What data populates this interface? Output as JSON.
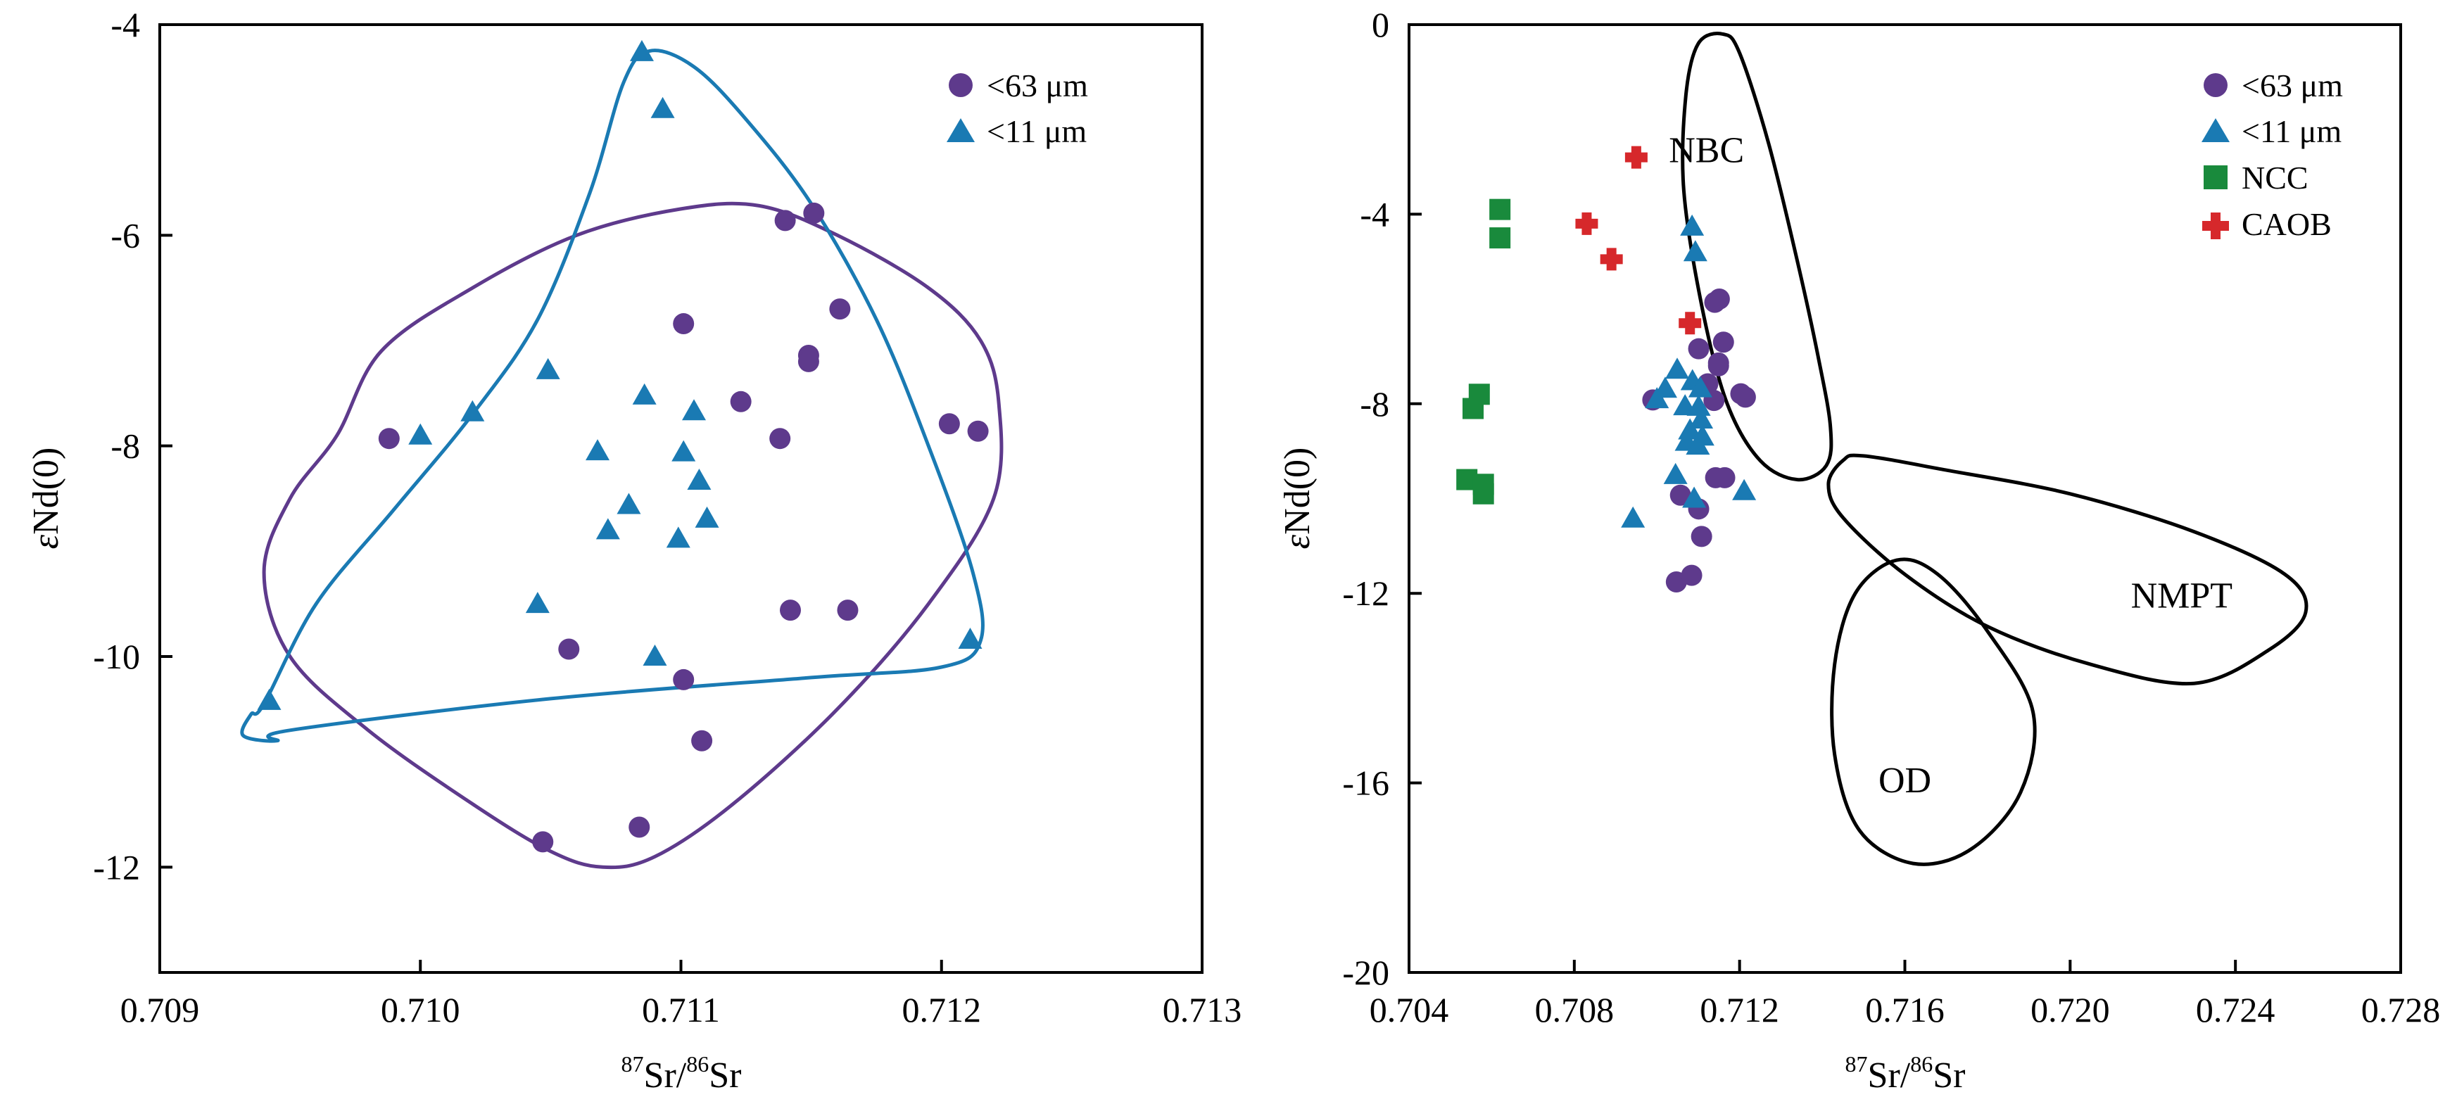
{
  "colors": {
    "purple": "#5e3a8c",
    "blue": "#1a7ab3",
    "green": "#198a3c",
    "red": "#d6282b",
    "black": "#000000"
  },
  "chart_data": [
    {
      "type": "scatter",
      "xlabel": {
        "sup1": "87",
        "mid": "Sr/",
        "sup2": "86",
        "end": "Sr"
      },
      "ylabel": {
        "pre": "ε",
        "main": "Nd(0)"
      },
      "xlim": [
        0.709,
        0.713
      ],
      "ylim": [
        -13,
        -4
      ],
      "xticks": [
        {
          "value": 0.709,
          "label": "0.709"
        },
        {
          "value": 0.71,
          "label": "0.710"
        },
        {
          "value": 0.711,
          "label": "0.711"
        },
        {
          "value": 0.712,
          "label": "0.712"
        },
        {
          "value": 0.713,
          "label": "0.713"
        }
      ],
      "yticks": [
        {
          "value": -4,
          "label": "-4"
        },
        {
          "value": -6,
          "label": "-6"
        },
        {
          "value": -8,
          "label": "-8"
        },
        {
          "value": -10,
          "label": "-10"
        },
        {
          "value": -12,
          "label": "-12"
        }
      ],
      "legend_position": "top-right",
      "series": [
        {
          "name": "<63 μm",
          "marker": "circle",
          "color": "#5e3a8c",
          "points": [
            [
              0.70988,
              -7.93
            ],
            [
              0.71057,
              -9.93
            ],
            [
              0.71047,
              -11.76
            ],
            [
              0.71084,
              -11.62
            ],
            [
              0.71101,
              -10.22
            ],
            [
              0.71108,
              -10.8
            ],
            [
              0.71101,
              -6.84
            ],
            [
              0.71123,
              -7.58
            ],
            [
              0.71138,
              -7.93
            ],
            [
              0.7114,
              -5.86
            ],
            [
              0.71151,
              -5.79
            ],
            [
              0.71149,
              -7.14
            ],
            [
              0.71149,
              -7.2
            ],
            [
              0.71142,
              -9.56
            ],
            [
              0.71161,
              -6.7
            ],
            [
              0.71164,
              -9.56
            ],
            [
              0.71203,
              -7.79
            ],
            [
              0.71214,
              -7.86
            ]
          ]
        },
        {
          "name": "<11 μm",
          "marker": "triangle",
          "color": "#1a7ab3",
          "points": [
            [
              0.70942,
              -10.42
            ],
            [
              0.71,
              -7.9
            ],
            [
              0.7102,
              -7.68
            ],
            [
              0.71049,
              -7.28
            ],
            [
              0.71045,
              -9.5
            ],
            [
              0.71068,
              -8.05
            ],
            [
              0.71072,
              -8.8
            ],
            [
              0.7108,
              -8.56
            ],
            [
              0.71085,
              -4.26
            ],
            [
              0.71086,
              -7.52
            ],
            [
              0.7109,
              -10.0
            ],
            [
              0.71093,
              -4.8
            ],
            [
              0.71099,
              -8.88
            ],
            [
              0.71101,
              -8.06
            ],
            [
              0.71105,
              -7.67
            ],
            [
              0.71107,
              -8.33
            ],
            [
              0.7111,
              -8.69
            ],
            [
              0.71211,
              -9.84
            ]
          ]
        }
      ],
      "envelopes": [
        {
          "series": "<63 μm",
          "color": "#5e3a8c",
          "points": [
            [
              0.70968,
              -7.9
            ],
            [
              0.7095,
              -8.5
            ],
            [
              0.7094,
              -9.2
            ],
            [
              0.7095,
              -10.0
            ],
            [
              0.7098,
              -10.7
            ],
            [
              0.7102,
              -11.4
            ],
            [
              0.7105,
              -11.85
            ],
            [
              0.7107,
              -12.0
            ],
            [
              0.7109,
              -11.9
            ],
            [
              0.7112,
              -11.4
            ],
            [
              0.7116,
              -10.5
            ],
            [
              0.71195,
              -9.5
            ],
            [
              0.7122,
              -8.5
            ],
            [
              0.71222,
              -7.6
            ],
            [
              0.71215,
              -7.0
            ],
            [
              0.71195,
              -6.5
            ],
            [
              0.7116,
              -6.0
            ],
            [
              0.7113,
              -5.72
            ],
            [
              0.711,
              -5.75
            ],
            [
              0.7106,
              -6.0
            ],
            [
              0.7102,
              -6.5
            ],
            [
              0.70985,
              -7.1
            ]
          ]
        },
        {
          "series": "<11 μm",
          "color": "#1a7ab3",
          "points": [
            [
              0.7094,
              -10.45
            ],
            [
              0.7096,
              -9.5
            ],
            [
              0.7099,
              -8.6
            ],
            [
              0.7102,
              -7.7
            ],
            [
              0.71045,
              -6.8
            ],
            [
              0.71065,
              -5.6
            ],
            [
              0.71078,
              -4.55
            ],
            [
              0.71088,
              -4.25
            ],
            [
              0.71105,
              -4.4
            ],
            [
              0.71125,
              -4.9
            ],
            [
              0.7115,
              -5.7
            ],
            [
              0.71175,
              -6.8
            ],
            [
              0.71195,
              -8.0
            ],
            [
              0.71212,
              -9.2
            ],
            [
              0.71215,
              -9.85
            ],
            [
              0.712,
              -10.1
            ],
            [
              0.7115,
              -10.2
            ],
            [
              0.7105,
              -10.4
            ],
            [
              0.7095,
              -10.7
            ],
            [
              0.70945,
              -10.8
            ],
            [
              0.70932,
              -10.75
            ],
            [
              0.70935,
              -10.55
            ]
          ]
        }
      ]
    },
    {
      "type": "scatter",
      "xlabel": {
        "sup1": "87",
        "mid": "Sr/",
        "sup2": "86",
        "end": "Sr"
      },
      "ylabel": {
        "pre": "ε",
        "main": "Nd(0)"
      },
      "xlim": [
        0.704,
        0.728
      ],
      "ylim": [
        -20,
        0
      ],
      "xticks": [
        {
          "value": 0.704,
          "label": "0.704"
        },
        {
          "value": 0.708,
          "label": "0.708"
        },
        {
          "value": 0.712,
          "label": "0.712"
        },
        {
          "value": 0.716,
          "label": "0.716"
        },
        {
          "value": 0.72,
          "label": "0.720"
        },
        {
          "value": 0.724,
          "label": "0.724"
        },
        {
          "value": 0.728,
          "label": "0.728"
        }
      ],
      "yticks": [
        {
          "value": 0,
          "label": "0"
        },
        {
          "value": -4,
          "label": "-4"
        },
        {
          "value": -8,
          "label": "-8"
        },
        {
          "value": -12,
          "label": "-12"
        },
        {
          "value": -16,
          "label": "-16"
        },
        {
          "value": -20,
          "label": "-20"
        }
      ],
      "legend_position": "top-right",
      "series": [
        {
          "name": "<63 μm",
          "marker": "circle",
          "color": "#5e3a8c",
          "points": [
            [
              0.7099,
              -7.92
            ],
            [
              0.71057,
              -9.93
            ],
            [
              0.71047,
              -11.76
            ],
            [
              0.71084,
              -11.62
            ],
            [
              0.71101,
              -10.22
            ],
            [
              0.71108,
              -10.8
            ],
            [
              0.71101,
              -6.84
            ],
            [
              0.71123,
              -7.58
            ],
            [
              0.71138,
              -7.93
            ],
            [
              0.7114,
              -5.86
            ],
            [
              0.71151,
              -5.79
            ],
            [
              0.71149,
              -7.14
            ],
            [
              0.71149,
              -7.2
            ],
            [
              0.71142,
              -9.56
            ],
            [
              0.71161,
              -6.7
            ],
            [
              0.71164,
              -9.56
            ],
            [
              0.71203,
              -7.79
            ],
            [
              0.71214,
              -7.86
            ]
          ]
        },
        {
          "name": "<11 μm",
          "marker": "triangle",
          "color": "#1a7ab3",
          "points": [
            [
              0.70942,
              -10.42
            ],
            [
              0.71,
              -7.9
            ],
            [
              0.7102,
              -7.68
            ],
            [
              0.71049,
              -7.28
            ],
            [
              0.71045,
              -9.5
            ],
            [
              0.71068,
              -8.05
            ],
            [
              0.71072,
              -8.8
            ],
            [
              0.7108,
              -8.56
            ],
            [
              0.71085,
              -4.26
            ],
            [
              0.71086,
              -7.52
            ],
            [
              0.7109,
              -10.0
            ],
            [
              0.71093,
              -4.8
            ],
            [
              0.71099,
              -8.88
            ],
            [
              0.71101,
              -8.06
            ],
            [
              0.71105,
              -7.67
            ],
            [
              0.71107,
              -8.33
            ],
            [
              0.7111,
              -8.69
            ],
            [
              0.71211,
              -9.84
            ]
          ]
        },
        {
          "name": "NCC",
          "marker": "square",
          "color": "#198a3c",
          "points": [
            [
              0.7062,
              -3.9
            ],
            [
              0.7062,
              -4.5
            ],
            [
              0.7057,
              -7.8
            ],
            [
              0.70555,
              -8.1
            ],
            [
              0.7054,
              -9.6
            ],
            [
              0.7058,
              -9.7
            ],
            [
              0.7058,
              -9.9
            ]
          ]
        },
        {
          "name": "CAOB",
          "marker": "cross",
          "color": "#d6282b",
          "points": [
            [
              0.7095,
              -2.8
            ],
            [
              0.7083,
              -4.2
            ],
            [
              0.7089,
              -4.95
            ],
            [
              0.7108,
              -6.3
            ]
          ]
        }
      ],
      "regions": [
        {
          "label": "NBC",
          "label_at": [
            0.7112,
            -2.9
          ],
          "points": [
            [
              0.7116,
              -0.2
            ],
            [
              0.712,
              -0.6
            ],
            [
              0.7127,
              -2.5
            ],
            [
              0.7134,
              -5.0
            ],
            [
              0.7139,
              -7.0
            ],
            [
              0.7142,
              -8.5
            ],
            [
              0.7141,
              -9.3
            ],
            [
              0.7134,
              -9.6
            ],
            [
              0.7125,
              -9.2
            ],
            [
              0.7117,
              -8.0
            ],
            [
              0.7111,
              -6.0
            ],
            [
              0.71065,
              -3.5
            ],
            [
              0.7107,
              -1.5
            ],
            [
              0.711,
              -0.4
            ]
          ]
        },
        {
          "label": "NMPT",
          "label_at": [
            0.7227,
            -12.3
          ],
          "points": [
            [
              0.7145,
              -9.2
            ],
            [
              0.715,
              -9.1
            ],
            [
              0.717,
              -9.4
            ],
            [
              0.72,
              -9.9
            ],
            [
              0.723,
              -10.7
            ],
            [
              0.7252,
              -11.6
            ],
            [
              0.7257,
              -12.4
            ],
            [
              0.7248,
              -13.2
            ],
            [
              0.723,
              -13.9
            ],
            [
              0.7205,
              -13.5
            ],
            [
              0.718,
              -12.7
            ],
            [
              0.716,
              -11.6
            ],
            [
              0.7145,
              -10.4
            ],
            [
              0.71415,
              -9.7
            ]
          ]
        },
        {
          "label": "OD",
          "label_at": [
            0.716,
            -16.2
          ],
          "points": [
            [
              0.7158,
              -11.3
            ],
            [
              0.7168,
              -11.6
            ],
            [
              0.718,
              -12.8
            ],
            [
              0.7191,
              -14.5
            ],
            [
              0.7188,
              -16.2
            ],
            [
              0.7176,
              -17.4
            ],
            [
              0.7162,
              -17.7
            ],
            [
              0.7149,
              -17.0
            ],
            [
              0.7143,
              -15.4
            ],
            [
              0.7143,
              -13.5
            ],
            [
              0.7148,
              -12.0
            ]
          ]
        }
      ]
    }
  ]
}
